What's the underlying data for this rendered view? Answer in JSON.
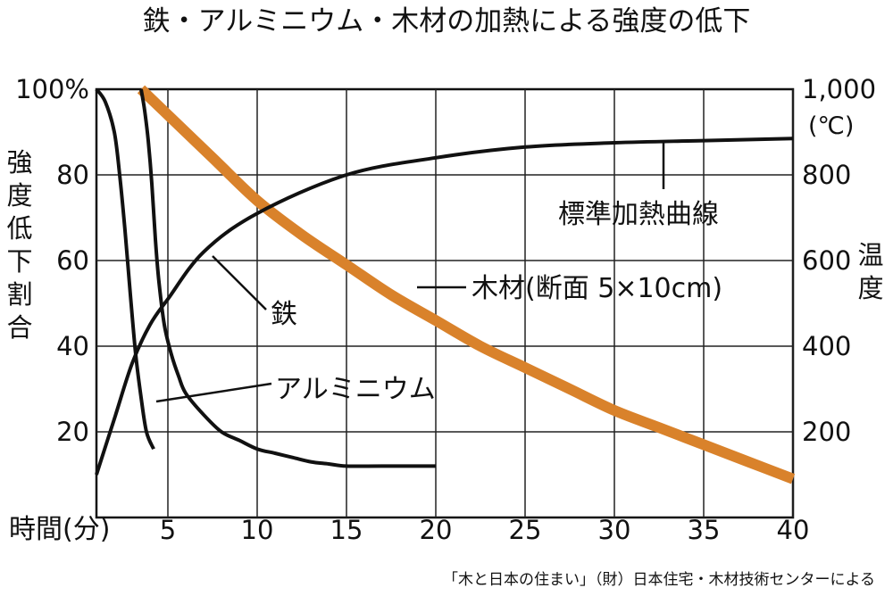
{
  "chart_data": {
    "type": "line",
    "title": "鉄・アルミニウム・木材の加熱による強度の低下",
    "source": "「木と日本の住まい」（財）日本住宅・木材技術センターによる",
    "xlabel": "時間(分)",
    "ylabel_left": "強度低下割合",
    "ylabel_right": "温度",
    "right_unit": "(℃)",
    "x_ticks": [
      "5",
      "10",
      "15",
      "20",
      "25",
      "30",
      "35",
      "40"
    ],
    "y_left_ticks": [
      "100%",
      "80",
      "60",
      "40",
      "20"
    ],
    "y_right_ticks": [
      "1,000",
      "800",
      "600",
      "400",
      "200"
    ],
    "xlim": [
      1,
      40
    ],
    "ylim_left": [
      0,
      100
    ],
    "ylim_right": [
      0,
      1000
    ],
    "grid": true,
    "series": [
      {
        "name": "鉄",
        "axis": "left",
        "color": "#111111",
        "x": [
          3.5,
          3.7,
          3.9,
          4.1,
          4.3,
          4.5,
          4.8,
          5.2,
          5.6,
          6,
          7,
          8,
          9,
          10,
          11,
          12,
          13,
          14,
          15,
          17,
          20
        ],
        "y": [
          100,
          95,
          88,
          78,
          65,
          55,
          45,
          38,
          33,
          29,
          24,
          20,
          18,
          16,
          15,
          14,
          13,
          12.5,
          12,
          12,
          12
        ]
      },
      {
        "name": "アルミニウム",
        "axis": "left",
        "color": "#111111",
        "x": [
          1,
          1.5,
          2,
          2.3,
          2.6,
          2.9,
          3.2,
          3.5,
          3.8,
          4.2
        ],
        "y": [
          100,
          97,
          90,
          80,
          67,
          52,
          38,
          28,
          20,
          16
        ]
      },
      {
        "name": "木材(断面 5×10cm)",
        "axis": "left",
        "color": "#d9822b",
        "x": [
          3.5,
          5,
          7.5,
          10,
          12.5,
          15,
          17.5,
          20,
          22.5,
          25,
          27.5,
          30,
          32.5,
          35,
          37.5,
          40
        ],
        "y": [
          100,
          94,
          84,
          74,
          66,
          59,
          52,
          46,
          40,
          35,
          30,
          25,
          21,
          17,
          13,
          9
        ]
      },
      {
        "name": "標準加熱曲線",
        "axis": "right",
        "color": "#111111",
        "x": [
          1,
          2,
          3,
          4,
          5,
          7,
          10,
          15,
          20,
          25,
          30,
          35,
          40
        ],
        "y": [
          100,
          230,
          360,
          450,
          510,
          620,
          710,
          800,
          840,
          865,
          875,
          880,
          885
        ]
      }
    ],
    "annotations": [
      "標準加熱曲線",
      "木材(断面 5×10cm)",
      "鉄",
      "アルミニウム"
    ]
  }
}
